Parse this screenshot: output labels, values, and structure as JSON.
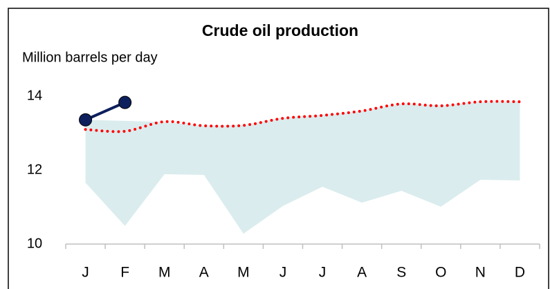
{
  "chart_data": {
    "type": "line",
    "title": "Crude oil production",
    "subtitle": "Million barrels per day",
    "categories": [
      "J",
      "F",
      "M",
      "A",
      "M",
      "J",
      "J",
      "A",
      "S",
      "O",
      "N",
      "D"
    ],
    "range": {
      "color": "#daecee",
      "upper": [
        13.36,
        13.33,
        13.3,
        13.2,
        13.22,
        13.42,
        13.5,
        13.6,
        13.8,
        13.75,
        13.85,
        13.85
      ],
      "lower": [
        11.66,
        10.49,
        11.89,
        11.87,
        10.28,
        11.03,
        11.55,
        11.12,
        11.44,
        11.01,
        11.74,
        11.72
      ]
    },
    "series": [
      {
        "color": "#ff0000",
        "style": "dotted",
        "values": [
          13.1,
          13.05,
          13.31,
          13.2,
          13.21,
          13.4,
          13.48,
          13.6,
          13.79,
          13.74,
          13.85,
          13.85
        ]
      },
      {
        "color": "#0d1f5c",
        "style": "solid",
        "markers": true,
        "values": [
          13.36,
          13.83,
          null,
          null,
          null,
          null,
          null,
          null,
          null,
          null,
          null,
          null
        ]
      }
    ],
    "ylim": [
      10,
      14.6
    ],
    "yticks": [
      10,
      12,
      14
    ],
    "grid": false
  }
}
